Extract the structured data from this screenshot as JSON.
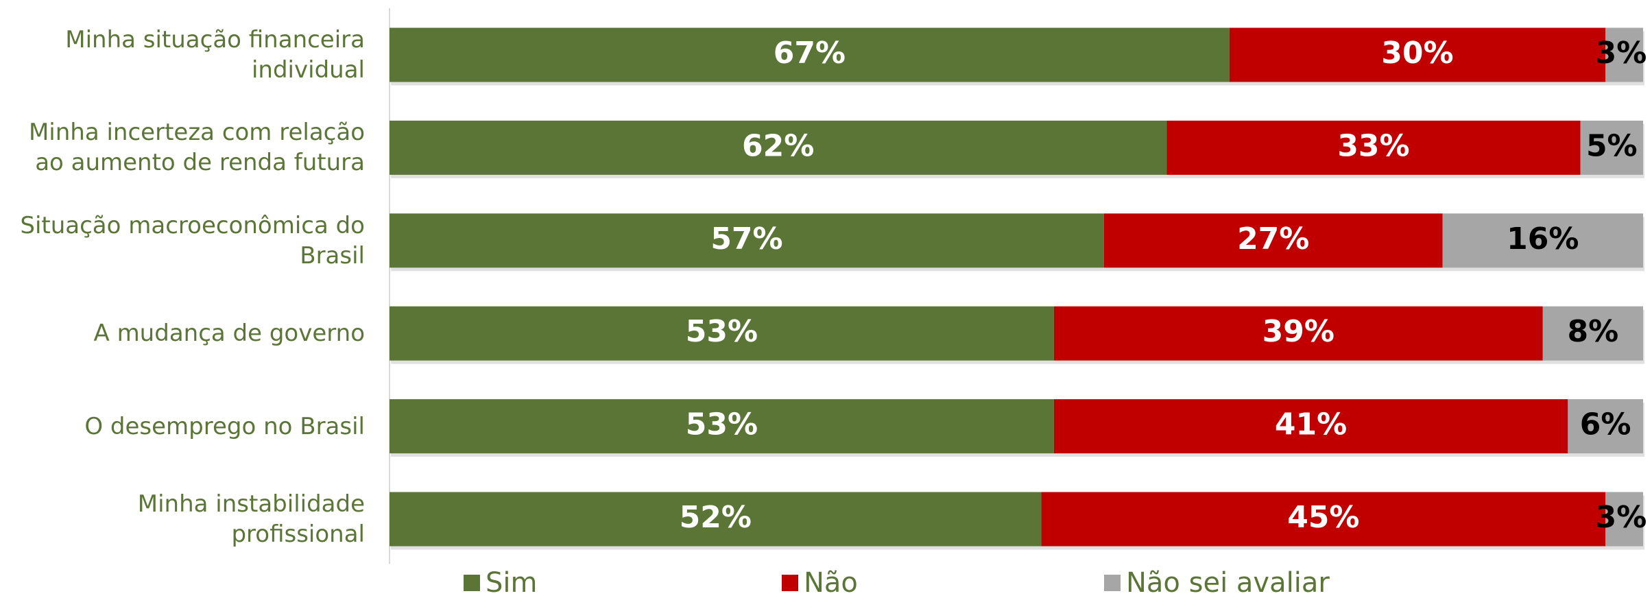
{
  "chart_data": {
    "type": "stacked-bar-horizontal",
    "categories": [
      "Minha situação financeira individual",
      "Minha incerteza com relação ao aumento de renda futura",
      "Situação macroeconômica do Brasil",
      "A mudança de governo",
      "O desemprego no Brasil",
      "Minha instabilidade profissional"
    ],
    "series": [
      {
        "name": "Sim",
        "color": "#5b7537",
        "values": [
          67,
          62,
          57,
          53,
          53,
          52
        ],
        "value_labels": [
          "67%",
          "62%",
          "57%",
          "53%",
          "53%",
          "52%"
        ]
      },
      {
        "name": "Não",
        "color": "#c00000",
        "values": [
          30,
          33,
          27,
          39,
          41,
          45
        ],
        "value_labels": [
          "30%",
          "33%",
          "27%",
          "39%",
          "41%",
          "45%"
        ]
      },
      {
        "name": "Não sei avaliar",
        "color": "#a6a6a6",
        "values": [
          3,
          5,
          16,
          8,
          6,
          3
        ],
        "value_labels": [
          "3%",
          "5%",
          "16%",
          "8%",
          "6%",
          "3%"
        ]
      }
    ],
    "xlim": [
      0,
      100
    ],
    "legend": "bottom"
  }
}
